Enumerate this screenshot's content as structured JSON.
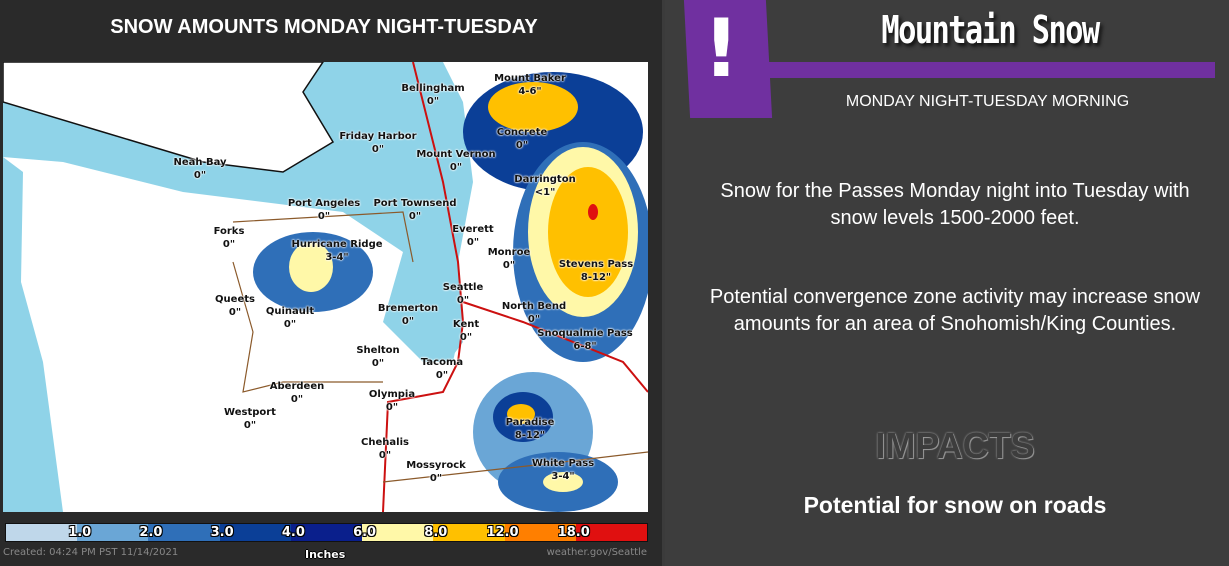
{
  "map": {
    "title": "SNOW AMOUNTS MONDAY NIGHT-TUESDAY",
    "labels": [
      {
        "name": "Bellingham",
        "amount": "0\""
      },
      {
        "name": "Mount Baker",
        "amount": "4-6\""
      },
      {
        "name": "Friday Harbor",
        "amount": "0\""
      },
      {
        "name": "Concrete",
        "amount": "0\""
      },
      {
        "name": "Mount Vernon",
        "amount": "0\""
      },
      {
        "name": "Neah Bay",
        "amount": "0\""
      },
      {
        "name": "Darrington",
        "amount": "<1\""
      },
      {
        "name": "Port Angeles",
        "amount": "0\""
      },
      {
        "name": "Port Townsend",
        "amount": "0\""
      },
      {
        "name": "Forks",
        "amount": "0\""
      },
      {
        "name": "Everett",
        "amount": "0\""
      },
      {
        "name": "Hurricane Ridge",
        "amount": "3-4\""
      },
      {
        "name": "Monroe",
        "amount": "0\""
      },
      {
        "name": "Stevens Pass",
        "amount": "8-12\""
      },
      {
        "name": "Seattle",
        "amount": "0\""
      },
      {
        "name": "Queets",
        "amount": "0\""
      },
      {
        "name": "Quinault",
        "amount": "0\""
      },
      {
        "name": "Bremerton",
        "amount": "0\""
      },
      {
        "name": "North Bend",
        "amount": "0\""
      },
      {
        "name": "Kent",
        "amount": "0\""
      },
      {
        "name": "Snoqualmie Pass",
        "amount": "6-8\""
      },
      {
        "name": "Shelton",
        "amount": "0\""
      },
      {
        "name": "Tacoma",
        "amount": "0\""
      },
      {
        "name": "Aberdeen",
        "amount": "0\""
      },
      {
        "name": "Olympia",
        "amount": "0\""
      },
      {
        "name": "Westport",
        "amount": "0\""
      },
      {
        "name": "Paradise",
        "amount": "8-12\""
      },
      {
        "name": "Chehalis",
        "amount": "0\""
      },
      {
        "name": "Mossyrock",
        "amount": "0\""
      },
      {
        "name": "White Pass",
        "amount": "3-4\""
      }
    ],
    "legend": {
      "units": "Inches",
      "bins": [
        {
          "label": "1.0",
          "color": "#bfd7ea"
        },
        {
          "label": "2.0",
          "color": "#6aa6d6"
        },
        {
          "label": "3.0",
          "color": "#2f6fb8"
        },
        {
          "label": "4.0",
          "color": "#0b3f97"
        },
        {
          "label": "6.0",
          "color": "#0a1f8c"
        },
        {
          "label": "8.0",
          "color": "#fff8a8"
        },
        {
          "label": "12.0",
          "color": "#ffc000"
        },
        {
          "label": "18.0",
          "color": "#ff7f00"
        },
        {
          "label": "",
          "color": "#e01010"
        }
      ]
    },
    "created": "Created: 04:24 PM PST 11/14/2021",
    "credit": "weather.gov/Seattle",
    "colors": {
      "water": "#8fd3e8",
      "land": "#ffffff",
      "highway": "#cc1010",
      "county": "#8b5a2b"
    }
  },
  "panel": {
    "icon": "exclamation-icon",
    "headline": "Mountain Snow",
    "subtitle": "MONDAY NIGHT-TUESDAY MORNING",
    "paragraph1": "Snow for the Passes Monday night into Tuesday with snow levels 1500-2000 feet.",
    "paragraph2": "Potential convergence zone activity may increase snow amounts for an area of Snohomish/King Counties.",
    "impacts_heading": "IMPACTS",
    "impacts_text": "Potential for snow on roads",
    "accent": "#7030a0"
  }
}
